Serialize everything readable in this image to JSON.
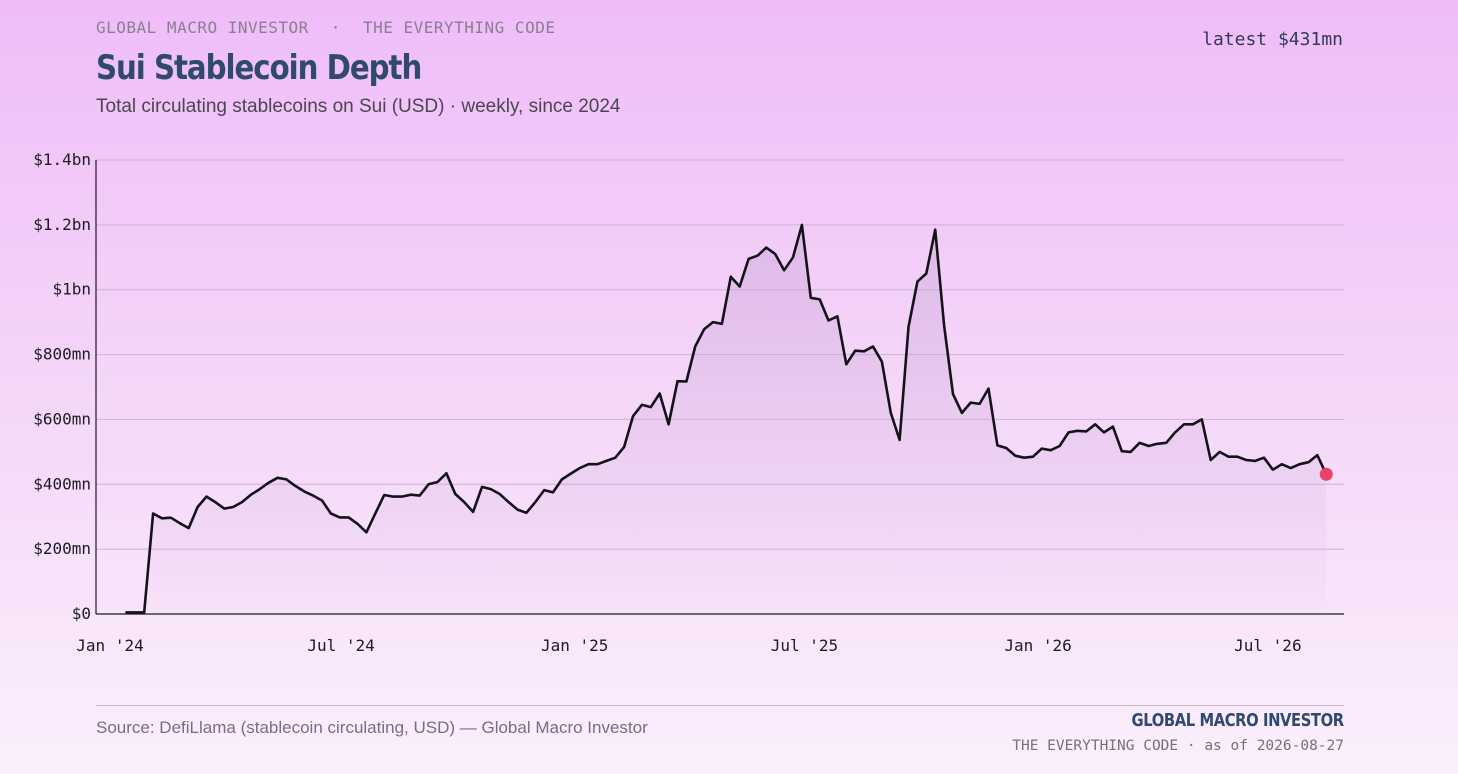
{
  "header": {
    "eyebrow_left": "GLOBAL MACRO INVESTOR",
    "eyebrow_sep": "·",
    "eyebrow_right": "THE EVERYTHING CODE",
    "title": "Sui Stablecoin Depth",
    "subtitle": "Total circulating stablecoins on Sui (USD) · weekly, since 2024",
    "latest": "latest $431mn"
  },
  "footer": {
    "source": "Source: DefiLlama (stablecoin circulating, USD) — Global Macro Investor",
    "brand": "GLOBAL MACRO INVESTOR",
    "brand_sub": "THE EVERYTHING CODE · as of 2026-08-27"
  },
  "colors": {
    "line": "#15131a",
    "marker": "#e8416a",
    "grid": "#cdb3d6",
    "axis": "#1c1c22",
    "fill": "#c8a4d8"
  },
  "chart_data": {
    "type": "area",
    "grid": true,
    "marker_last_point": true,
    "y_unit": "USD millions",
    "ylim": [
      0,
      1400
    ],
    "xlim": [
      "2024-01-01",
      "2026-09-10"
    ],
    "y_ticks": [
      {
        "value": 0,
        "label": "$0"
      },
      {
        "value": 200,
        "label": "$200mn"
      },
      {
        "value": 400,
        "label": "$400mn"
      },
      {
        "value": 600,
        "label": "$600mn"
      },
      {
        "value": 800,
        "label": "$800mn"
      },
      {
        "value": 1000,
        "label": "$1bn"
      },
      {
        "value": 1200,
        "label": "$1.2bn"
      },
      {
        "value": 1400,
        "label": "$1.4bn"
      }
    ],
    "x_ticks": [
      {
        "value": "2024-01-01",
        "label": "Jan '24"
      },
      {
        "value": "2024-07-01",
        "label": "Jul '24"
      },
      {
        "value": "2025-01-01",
        "label": "Jan '25"
      },
      {
        "value": "2025-07-01",
        "label": "Jul '25"
      },
      {
        "value": "2026-01-01",
        "label": "Jan '26"
      },
      {
        "value": "2026-07-01",
        "label": "Jul '26"
      }
    ],
    "series": [
      {
        "x": [
          "2024-01-25",
          "2024-02-01",
          "2024-02-08",
          "2024-02-15",
          "2024-02-22",
          "2024-02-29",
          "2024-03-07",
          "2024-03-14",
          "2024-03-21",
          "2024-03-28",
          "2024-04-04",
          "2024-04-11",
          "2024-04-18",
          "2024-04-25",
          "2024-05-02",
          "2024-05-09",
          "2024-05-16",
          "2024-05-23",
          "2024-05-30",
          "2024-06-06",
          "2024-06-13",
          "2024-06-20",
          "2024-06-27",
          "2024-07-04",
          "2024-07-11",
          "2024-07-18",
          "2024-07-25",
          "2024-08-01",
          "2024-08-08",
          "2024-08-15",
          "2024-08-22",
          "2024-08-29",
          "2024-09-05",
          "2024-09-12",
          "2024-09-19",
          "2024-09-26",
          "2024-10-03",
          "2024-10-10",
          "2024-10-17",
          "2024-10-24",
          "2024-10-31",
          "2024-11-07",
          "2024-11-14",
          "2024-11-21",
          "2024-11-28",
          "2024-12-05",
          "2024-12-12",
          "2024-12-19",
          "2024-12-26",
          "2025-01-02",
          "2025-01-09",
          "2025-01-16",
          "2025-01-23",
          "2025-01-30",
          "2025-02-06",
          "2025-02-13",
          "2025-02-20",
          "2025-02-27",
          "2025-03-06",
          "2025-03-13",
          "2025-03-20",
          "2025-03-27",
          "2025-04-03",
          "2025-04-10",
          "2025-04-17",
          "2025-04-24",
          "2025-05-01",
          "2025-05-08",
          "2025-05-15",
          "2025-05-22",
          "2025-05-29",
          "2025-06-05",
          "2025-06-12",
          "2025-06-19",
          "2025-06-26",
          "2025-07-03",
          "2025-07-10",
          "2025-07-17",
          "2025-07-24",
          "2025-07-31",
          "2025-08-07",
          "2025-08-14",
          "2025-08-21",
          "2025-08-28",
          "2025-09-04",
          "2025-09-11",
          "2025-09-18",
          "2025-09-25",
          "2025-10-02",
          "2025-10-09",
          "2025-10-16",
          "2025-10-23",
          "2025-10-30",
          "2025-11-06",
          "2025-11-13",
          "2025-11-20",
          "2025-11-27",
          "2025-12-04",
          "2025-12-11",
          "2025-12-18",
          "2025-12-25",
          "2026-01-01",
          "2026-01-08",
          "2026-01-15",
          "2026-01-22",
          "2026-01-29",
          "2026-02-05",
          "2026-02-12",
          "2026-02-19",
          "2026-02-26",
          "2026-03-05",
          "2026-03-12",
          "2026-03-19",
          "2026-03-26",
          "2026-04-02",
          "2026-04-09",
          "2026-04-16",
          "2026-04-23",
          "2026-04-30",
          "2026-05-07",
          "2026-05-14",
          "2026-05-21",
          "2026-05-28",
          "2026-06-04",
          "2026-06-11",
          "2026-06-18",
          "2026-06-25",
          "2026-07-02",
          "2026-07-09",
          "2026-07-16",
          "2026-07-23",
          "2026-07-30",
          "2026-08-06",
          "2026-08-13",
          "2026-08-20",
          "2026-08-27"
        ],
        "values": [
          5,
          5,
          5,
          310,
          295,
          297,
          280,
          265,
          330,
          362,
          345,
          325,
          330,
          345,
          368,
          385,
          405,
          420,
          415,
          395,
          378,
          365,
          350,
          310,
          298,
          298,
          278,
          252,
          310,
          367,
          362,
          362,
          368,
          365,
          400,
          407,
          434,
          370,
          345,
          315,
          392,
          385,
          370,
          345,
          322,
          312,
          345,
          382,
          375,
          415,
          433,
          450,
          462,
          462,
          472,
          482,
          515,
          610,
          645,
          638,
          680,
          585,
          718,
          717,
          825,
          878,
          900,
          895,
          1040,
          1010,
          1095,
          1105,
          1130,
          1110,
          1060,
          1100,
          1200,
          975,
          970,
          905,
          918,
          770,
          812,
          810,
          825,
          778,
          620,
          537,
          885,
          1025,
          1050,
          1185,
          890,
          678,
          620,
          652,
          648,
          695,
          520,
          512,
          488,
          482,
          485,
          510,
          505,
          518,
          560,
          565,
          563,
          585,
          560,
          578,
          502,
          500,
          528,
          518,
          525,
          528,
          560,
          585,
          585,
          600,
          475,
          500,
          485,
          485,
          475,
          472,
          482,
          445,
          462,
          450,
          462,
          468,
          490,
          431
        ]
      }
    ]
  }
}
